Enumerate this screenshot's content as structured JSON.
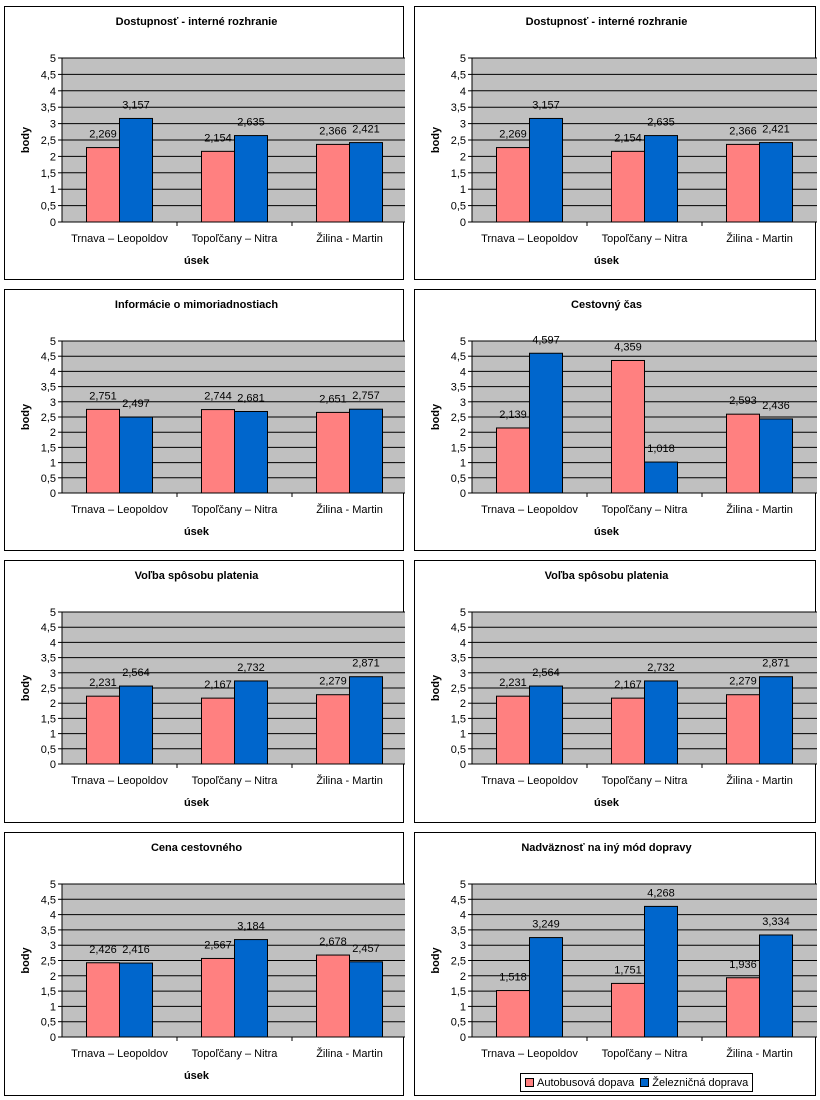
{
  "colors": {
    "bus": "#ff8080",
    "rail": "#0066cc",
    "plot_bg": "#c0c0c0"
  },
  "legend": {
    "bus": "Autobusová dopava",
    "rail": "Železničná doprava"
  },
  "chart_data": [
    {
      "type": "bar",
      "title": "Dostupnosť - interné rozhranie",
      "ylabel": "body",
      "xlabel": "úsek",
      "ylim": [
        0,
        5
      ],
      "yticks": [
        "0",
        "0,5",
        "1",
        "1,5",
        "2",
        "2,5",
        "3",
        "3,5",
        "4",
        "4,5",
        "5"
      ],
      "categories": [
        "Trnava – Leopoldov",
        "Topoľčany – Nitra",
        "Žilina - Martin"
      ],
      "series": [
        {
          "name": "Autobusová dopava",
          "values": [
            2.269,
            2.154,
            2.366
          ],
          "labels": [
            "2,269",
            "2,154",
            "2,366"
          ]
        },
        {
          "name": "Železničná doprava",
          "values": [
            3.157,
            2.635,
            2.421
          ],
          "labels": [
            "3,157",
            "2,635",
            "2,421"
          ]
        }
      ]
    },
    {
      "type": "bar",
      "title": "Dostupnosť - interné rozhranie",
      "ylabel": "body",
      "xlabel": "úsek",
      "ylim": [
        0,
        5
      ],
      "yticks": [
        "0",
        "0,5",
        "1",
        "1,5",
        "2",
        "2,5",
        "3",
        "3,5",
        "4",
        "4,5",
        "5"
      ],
      "categories": [
        "Trnava – Leopoldov",
        "Topoľčany – Nitra",
        "Žilina - Martin"
      ],
      "series": [
        {
          "name": "Autobusová dopava",
          "values": [
            2.269,
            2.154,
            2.366
          ],
          "labels": [
            "2,269",
            "2,154",
            "2,366"
          ]
        },
        {
          "name": "Železničná doprava",
          "values": [
            3.157,
            2.635,
            2.421
          ],
          "labels": [
            "3,157",
            "2,635",
            "2,421"
          ]
        }
      ]
    },
    {
      "type": "bar",
      "title": "Informácie o mimoriadnostiach",
      "ylabel": "body",
      "xlabel": "úsek",
      "ylim": [
        0,
        5
      ],
      "yticks": [
        "0",
        "0,5",
        "1",
        "1,5",
        "2",
        "2,5",
        "3",
        "3,5",
        "4",
        "4,5",
        "5"
      ],
      "categories": [
        "Trnava – Leopoldov",
        "Topoľčany – Nitra",
        "Žilina - Martin"
      ],
      "series": [
        {
          "name": "Autobusová dopava",
          "values": [
            2.751,
            2.744,
            2.651
          ],
          "labels": [
            "2,751",
            "2,744",
            "2,651"
          ]
        },
        {
          "name": "Železničná doprava",
          "values": [
            2.497,
            2.681,
            2.757
          ],
          "labels": [
            "2,497",
            "2,681",
            "2,757"
          ]
        }
      ]
    },
    {
      "type": "bar",
      "title": "Cestovný čas",
      "ylabel": "body",
      "xlabel": "úsek",
      "ylim": [
        0,
        5
      ],
      "yticks": [
        "0",
        "0,5",
        "1",
        "1,5",
        "2",
        "2,5",
        "3",
        "3,5",
        "4",
        "4,5",
        "5"
      ],
      "categories": [
        "Trnava – Leopoldov",
        "Topoľčany – Nitra",
        "Žilina - Martin"
      ],
      "series": [
        {
          "name": "Autobusová dopava",
          "values": [
            2.139,
            4.359,
            2.593
          ],
          "labels": [
            "2,139",
            "4,359",
            "2,593"
          ]
        },
        {
          "name": "Železničná doprava",
          "values": [
            4.597,
            1.018,
            2.436
          ],
          "labels": [
            "4,597",
            "1,018",
            "2,436"
          ]
        }
      ]
    },
    {
      "type": "bar",
      "title": "Voľba spôsobu platenia",
      "ylabel": "body",
      "xlabel": "úsek",
      "ylim": [
        0,
        5
      ],
      "yticks": [
        "0",
        "0,5",
        "1",
        "1,5",
        "2",
        "2,5",
        "3",
        "3,5",
        "4",
        "4,5",
        "5"
      ],
      "categories": [
        "Trnava – Leopoldov",
        "Topoľčany – Nitra",
        "Žilina - Martin"
      ],
      "series": [
        {
          "name": "Autobusová dopava",
          "values": [
            2.231,
            2.167,
            2.279
          ],
          "labels": [
            "2,231",
            "2,167",
            "2,279"
          ]
        },
        {
          "name": "Železničná doprava",
          "values": [
            2.564,
            2.732,
            2.871
          ],
          "labels": [
            "2,564",
            "2,732",
            "2,871"
          ]
        }
      ]
    },
    {
      "type": "bar",
      "title": "Voľba spôsobu platenia",
      "ylabel": "body",
      "xlabel": "úsek",
      "ylim": [
        0,
        5
      ],
      "yticks": [
        "0",
        "0,5",
        "1",
        "1,5",
        "2",
        "2,5",
        "3",
        "3,5",
        "4",
        "4,5",
        "5"
      ],
      "categories": [
        "Trnava – Leopoldov",
        "Topoľčany – Nitra",
        "Žilina - Martin"
      ],
      "series": [
        {
          "name": "Autobusová dopava",
          "values": [
            2.231,
            2.167,
            2.279
          ],
          "labels": [
            "2,231",
            "2,167",
            "2,279"
          ]
        },
        {
          "name": "Železničná doprava",
          "values": [
            2.564,
            2.732,
            2.871
          ],
          "labels": [
            "2,564",
            "2,732",
            "2,871"
          ]
        }
      ]
    },
    {
      "type": "bar",
      "title": "Cena cestovného",
      "ylabel": "body",
      "xlabel": "úsek",
      "ylim": [
        0,
        5
      ],
      "yticks": [
        "0",
        "0,5",
        "1",
        "1,5",
        "2",
        "2,5",
        "3",
        "3,5",
        "4",
        "4,5",
        "5"
      ],
      "categories": [
        "Trnava – Leopoldov",
        "Topoľčany – Nitra",
        "Žilina - Martin"
      ],
      "series": [
        {
          "name": "Autobusová dopava",
          "values": [
            2.426,
            2.567,
            2.678
          ],
          "labels": [
            "2,426",
            "2,567",
            "2,678"
          ]
        },
        {
          "name": "Železničná doprava",
          "values": [
            2.416,
            3.184,
            2.457
          ],
          "labels": [
            "2,416",
            "3,184",
            "2,457"
          ]
        }
      ]
    },
    {
      "type": "bar",
      "title": "Nadväznosť na iný mód dopravy",
      "ylabel": "body",
      "xlabel": "",
      "ylim": [
        0,
        5
      ],
      "yticks": [
        "0",
        "0,5",
        "1",
        "1,5",
        "2",
        "2,5",
        "3",
        "3,5",
        "4",
        "4,5",
        "5"
      ],
      "categories": [
        "Trnava – Leopoldov",
        "Topoľčany – Nitra",
        "Žilina - Martin"
      ],
      "series": [
        {
          "name": "Autobusová dopava",
          "values": [
            1.518,
            1.751,
            1.936
          ],
          "labels": [
            "1,518",
            "1,751",
            "1,936"
          ]
        },
        {
          "name": "Železničná doprava",
          "values": [
            3.249,
            4.268,
            3.334
          ],
          "labels": [
            "3,249",
            "4,268",
            "3,334"
          ]
        }
      ]
    }
  ]
}
